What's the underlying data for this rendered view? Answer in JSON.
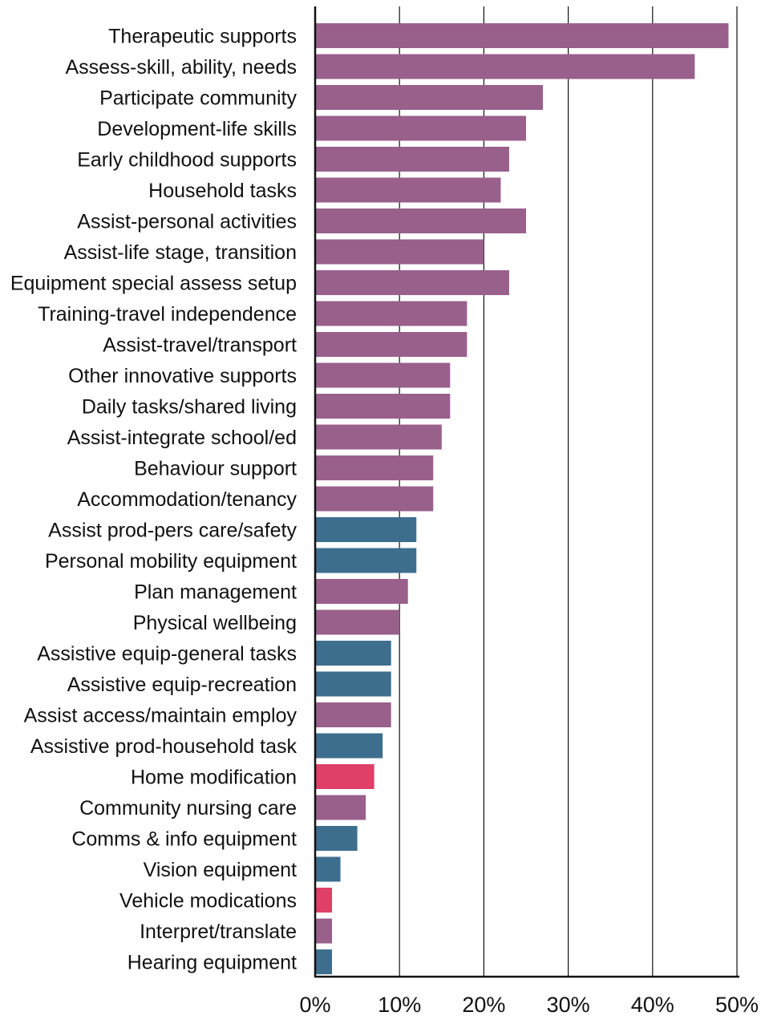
{
  "chart_data": {
    "type": "bar",
    "orientation": "horizontal",
    "title": "",
    "xlabel": "",
    "ylabel": "",
    "xlim": [
      0,
      50
    ],
    "x_ticks": [
      "0%",
      "10%",
      "20%",
      "30%",
      "40%",
      "50%"
    ],
    "grid": "vertical",
    "legend": "none",
    "group_colors": {
      "purple": "#99608c",
      "blue": "#3d6e8e",
      "pink": "#de4068"
    },
    "categories": [
      "Therapeutic supports",
      "Assess-skill, ability, needs",
      "Participate community",
      "Development-life skills",
      "Early childhood supports",
      "Household tasks",
      "Assist-personal activities",
      "Assist-life stage, transition",
      "Equipment special assess setup",
      "Training-travel independence",
      "Assist-travel/transport",
      "Other innovative supports",
      "Daily tasks/shared living",
      "Assist-integrate school/ed",
      "Behaviour support",
      "Accommodation/tenancy",
      "Assist prod-pers care/safety",
      "Personal mobility equipment",
      "Plan management",
      "Physical wellbeing",
      "Assistive equip-general tasks",
      "Assistive equip-recreation",
      "Assist access/maintain employ",
      "Assistive prod-household task",
      "Home modification",
      "Community nursing care",
      "Comms & info equipment",
      "Vision equipment",
      "Vehicle modications",
      "Interpret/translate",
      "Hearing equipment"
    ],
    "values": [
      49,
      45,
      27,
      25,
      23,
      22,
      25,
      20,
      23,
      18,
      18,
      16,
      16,
      15,
      14,
      14,
      12,
      12,
      11,
      10,
      9,
      9,
      9,
      8,
      7,
      6,
      5,
      3,
      2,
      2,
      2
    ],
    "color_groups": [
      "purple",
      "purple",
      "purple",
      "purple",
      "purple",
      "purple",
      "purple",
      "purple",
      "purple",
      "purple",
      "purple",
      "purple",
      "purple",
      "purple",
      "purple",
      "purple",
      "blue",
      "blue",
      "purple",
      "purple",
      "blue",
      "blue",
      "purple",
      "blue",
      "pink",
      "purple",
      "blue",
      "blue",
      "pink",
      "purple",
      "blue"
    ]
  }
}
